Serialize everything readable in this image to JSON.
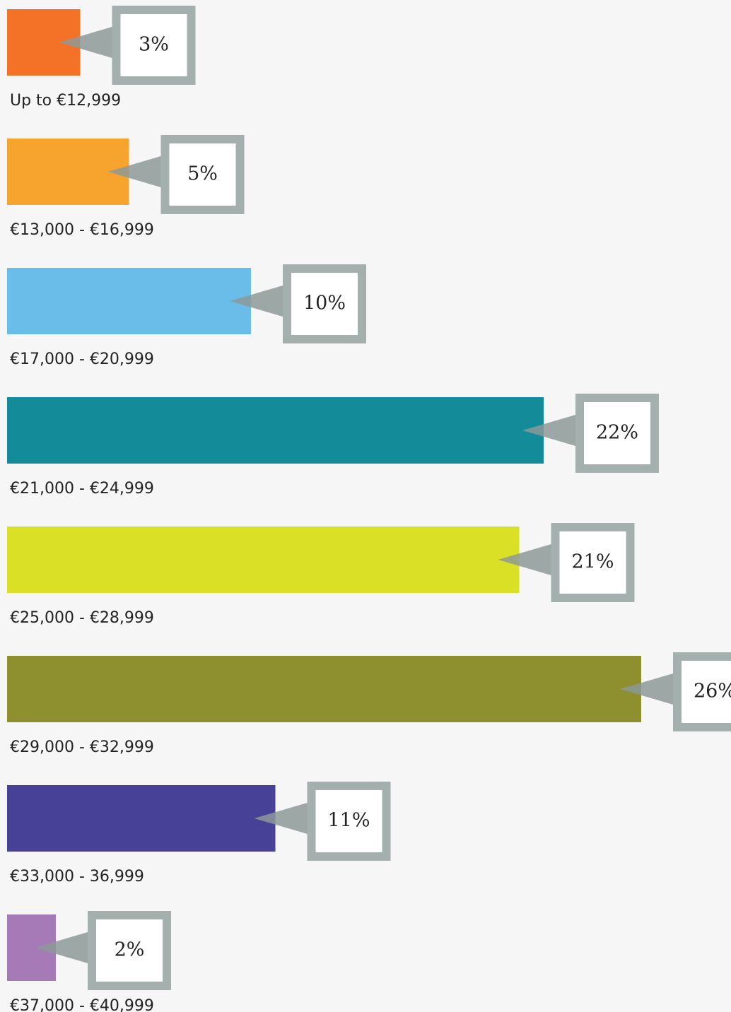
{
  "chart_data": {
    "type": "bar",
    "orientation": "horizontal",
    "categories": [
      "Up to €12,999",
      "€13,000 - €16,999",
      "€17,000 - €20,999",
      "€21,000 - €24,999",
      "€25,000 - €28,999",
      "€29,000 - €32,999",
      "€33,000 - 36,999",
      "€37,000 - €40,999"
    ],
    "values": [
      3,
      5,
      10,
      22,
      21,
      26,
      11,
      2
    ],
    "value_labels": [
      "3%",
      "5%",
      "10%",
      "22%",
      "21%",
      "26%",
      "11%",
      "2%"
    ],
    "colors": [
      "#f47228",
      "#f6a42d",
      "#6bbde9",
      "#138b98",
      "#dae025",
      "#8e9030",
      "#474198",
      "#a57ab7"
    ]
  }
}
